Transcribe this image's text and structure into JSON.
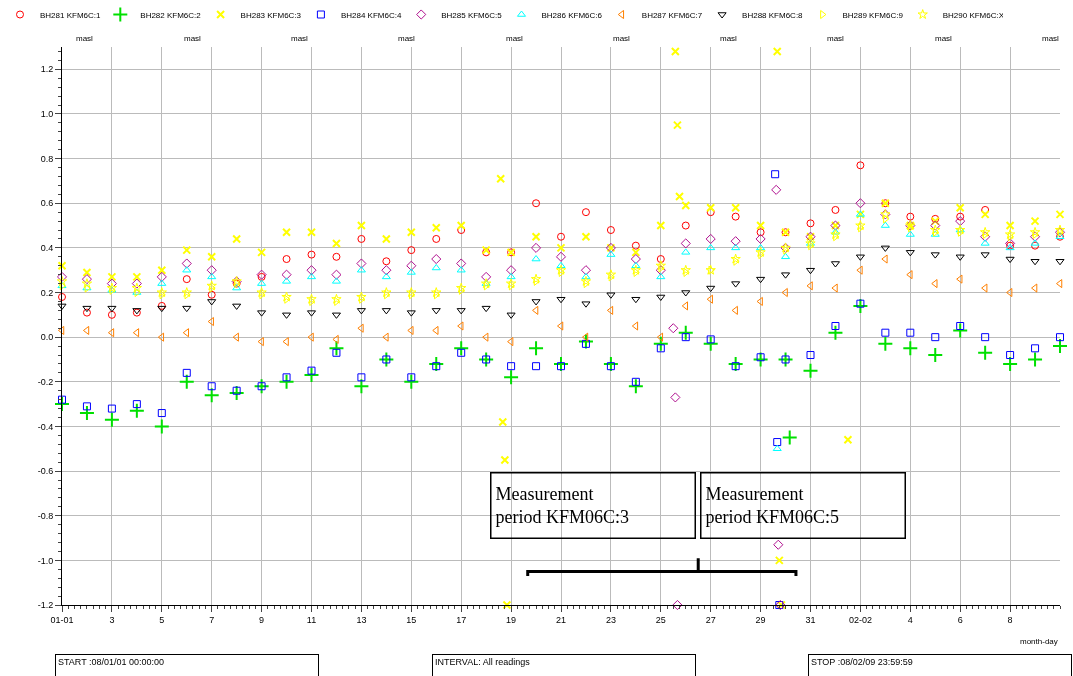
{
  "chart_data": {
    "type": "scatter",
    "x": [
      "--01-01",
      "--01-02",
      "--01-03",
      "--01-04",
      "--01-05",
      "--01-06",
      "--01-07",
      "--01-08",
      "--01-09",
      "--01-10",
      "--01-11",
      "--01-12",
      "--01-13",
      "--01-14",
      "--01-15",
      "--01-16",
      "--01-17",
      "--01-18",
      "--01-19",
      "--01-20",
      "--01-21",
      "--01-22",
      "--01-23",
      "--01-24",
      "--01-25",
      "--01-26",
      "--01-27",
      "--01-28",
      "--01-29",
      "--01-30",
      "--01-31",
      "--02-01",
      "--02-02",
      "--02-03",
      "--02-04",
      "--02-05",
      "--02-06",
      "--02-07",
      "--02-08",
      "--02-09",
      "--02-10"
    ],
    "xlabel": "month-day",
    "series": [
      {
        "name": "BH281 KFM6C:1",
        "color": "#ff0000",
        "marker": "circle",
        "values": [
          0.18,
          0.11,
          0.1,
          0.11,
          0.14,
          0.26,
          0.19,
          0.24,
          0.27,
          0.35,
          0.37,
          0.36,
          0.44,
          0.34,
          0.39,
          0.44,
          0.48,
          0.38,
          0.38,
          0.6,
          0.45,
          0.56,
          0.48,
          0.41,
          0.35,
          0.5,
          0.56,
          0.54,
          0.47,
          0.47,
          0.51,
          0.57,
          0.77,
          0.6,
          0.54,
          0.53,
          0.54,
          0.57,
          0.41,
          0.41,
          0.45
        ]
      },
      {
        "name": "BH282 KFM6C:2",
        "color": "#00e000",
        "marker": "cross",
        "x": [
          "--01-01",
          "--01-02",
          "--01-03",
          "--01-04",
          "--01-05",
          "--01-06",
          "--01-07",
          "--01-08",
          "--01-09",
          "--01-10",
          "--01-11",
          "--01-12",
          "--01-13",
          "--01-14",
          "--01-15",
          "--01-16",
          "--01-17",
          "--01-18",
          "--01-19",
          "--01-20",
          "--01-21",
          "--01-22",
          "--01-23",
          "--01-24",
          "--01-25",
          "--01-26",
          "--01-27",
          "--01-28",
          "--01-29",
          "--01-30",
          "--01-30T04:00",
          "--01-31",
          "--02-01",
          "--02-02",
          "--02-03",
          "--02-04",
          "--02-05",
          "--02-06",
          "--02-07",
          "--02-08",
          "--02-09",
          "--02-10"
        ],
        "values": [
          -0.3,
          -0.34,
          -0.37,
          -0.33,
          -0.4,
          -0.2,
          -0.26,
          -0.25,
          -0.22,
          -0.2,
          -0.17,
          -0.05,
          -0.22,
          -0.1,
          -0.2,
          -0.12,
          -0.05,
          -0.1,
          -0.18,
          -0.05,
          -0.12,
          -0.02,
          -0.12,
          -0.22,
          -0.03,
          0.02,
          -0.03,
          -0.12,
          -0.1,
          -0.1,
          -0.45,
          -0.15,
          0.02,
          0.14,
          -0.03,
          -0.05,
          -0.08,
          0.03,
          -0.07,
          -0.12,
          -0.1,
          -0.04
        ]
      },
      {
        "name": "BH283 KFM6C:3",
        "color": "#ffff00",
        "marker": "x",
        "x": [
          "--01-01",
          "--01-02",
          "--01-03",
          "--01-04",
          "--01-05",
          "--01-06",
          "--01-07",
          "--01-08",
          "--01-09",
          "--01-10",
          "--01-11",
          "--01-12",
          "--01-13",
          "--01-14",
          "--01-15",
          "--01-16",
          "--01-17",
          "--01-18",
          "--01-18T14:00",
          "--01-18T16:00",
          "--01-18T18:00",
          "--01-18T20:00",
          "--01-19",
          "--01-20",
          "--01-21",
          "--01-22",
          "--01-23",
          "--01-24",
          "--01-25",
          "--01-25T14:00",
          "--01-25T16:00",
          "--01-25T18:00",
          "--01-26",
          "--01-27",
          "--01-28",
          "--01-29",
          "--01-29T16:00",
          "--01-29T18:00",
          "--01-29T20:00",
          "--01-30",
          "--01-31",
          "--02-01",
          "--02-01T12:00",
          "--02-02",
          "--02-03",
          "--02-04",
          "--02-05",
          "--02-06",
          "--02-07",
          "--02-08",
          "--02-09",
          "--02-10"
        ],
        "values": [
          0.32,
          0.29,
          0.27,
          0.27,
          0.3,
          0.39,
          0.36,
          0.44,
          0.38,
          0.47,
          0.47,
          0.42,
          0.5,
          0.44,
          0.47,
          0.49,
          0.5,
          0.39,
          0.71,
          -0.38,
          -0.55,
          -1.2,
          0.38,
          0.45,
          0.4,
          0.45,
          0.4,
          0.38,
          0.5,
          1.28,
          0.95,
          0.63,
          0.59,
          0.58,
          0.58,
          0.5,
          1.28,
          -1.0,
          -1.2,
          0.47,
          0.45,
          0.5,
          -0.46,
          0.55,
          0.6,
          0.5,
          0.52,
          0.58,
          0.55,
          0.5,
          0.52,
          0.55
        ]
      },
      {
        "name": "BH284 KFM6C:4",
        "color": "#0000ff",
        "marker": "square",
        "x": [
          "--01-01",
          "--01-02",
          "--01-03",
          "--01-04",
          "--01-05",
          "--01-06",
          "--01-07",
          "--01-08",
          "--01-09",
          "--01-10",
          "--01-11",
          "--01-12",
          "--01-13",
          "--01-14",
          "--01-15",
          "--01-16",
          "--01-17",
          "--01-18",
          "--01-19",
          "--01-20",
          "--01-21",
          "--01-22",
          "--01-23",
          "--01-24",
          "--01-25",
          "--01-26",
          "--01-27",
          "--01-28",
          "--01-29",
          "--01-29T14:00",
          "--01-29T16:00",
          "--01-29T18:00",
          "--01-30",
          "--01-31",
          "--02-01",
          "--02-02",
          "--02-03",
          "--02-04",
          "--02-05",
          "--02-06",
          "--02-07",
          "--02-08",
          "--02-09",
          "--02-10"
        ],
        "values": [
          -0.28,
          -0.31,
          -0.32,
          -0.3,
          -0.34,
          -0.16,
          -0.22,
          -0.24,
          -0.22,
          -0.18,
          -0.15,
          -0.07,
          -0.18,
          -0.1,
          -0.18,
          -0.13,
          -0.07,
          -0.1,
          -0.13,
          -0.13,
          -0.13,
          -0.03,
          -0.13,
          -0.2,
          -0.05,
          0.0,
          -0.01,
          -0.13,
          -0.09,
          0.73,
          -0.47,
          -1.2,
          -0.1,
          -0.08,
          0.05,
          0.15,
          0.02,
          0.02,
          0.0,
          0.05,
          0.0,
          -0.08,
          -0.05,
          0.0
        ]
      },
      {
        "name": "BH285 KFM6C:5",
        "color": "#b0108f",
        "marker": "diamond",
        "x": [
          "--01-01",
          "--01-02",
          "--01-03",
          "--01-04",
          "--01-05",
          "--01-06",
          "--01-07",
          "--01-08",
          "--01-09",
          "--01-10",
          "--01-11",
          "--01-12",
          "--01-13",
          "--01-14",
          "--01-15",
          "--01-16",
          "--01-17",
          "--01-18",
          "--01-19",
          "--01-20",
          "--01-21",
          "--01-22",
          "--01-23",
          "--01-24",
          "--01-25",
          "--01-25T12:00",
          "--01-25T14:00",
          "--01-25T16:00",
          "--01-26",
          "--01-27",
          "--01-28",
          "--01-29",
          "--01-29T15:00",
          "--01-29T17:00",
          "--01-29T19:00",
          "--01-30",
          "--01-31",
          "--02-01",
          "--02-02",
          "--02-03",
          "--02-04",
          "--02-05",
          "--02-06",
          "--02-07",
          "--02-08",
          "--02-09",
          "--02-10"
        ],
        "values": [
          0.27,
          0.26,
          0.24,
          0.24,
          0.27,
          0.33,
          0.3,
          0.25,
          0.28,
          0.28,
          0.3,
          0.28,
          0.33,
          0.3,
          0.32,
          0.35,
          0.33,
          0.27,
          0.3,
          0.4,
          0.36,
          0.3,
          0.4,
          0.35,
          0.3,
          0.04,
          -0.27,
          -1.2,
          0.42,
          0.44,
          0.43,
          0.44,
          0.66,
          -0.93,
          -1.2,
          0.4,
          0.45,
          0.5,
          0.6,
          0.55,
          0.5,
          0.5,
          0.52,
          0.45,
          0.42,
          0.45,
          0.47
        ]
      },
      {
        "name": "BH286 KFM6C:6",
        "color": "#00ffff",
        "marker": "triangle-up",
        "x": [
          "--01-01",
          "--01-02",
          "--01-03",
          "--01-04",
          "--01-05",
          "--01-06",
          "--01-07",
          "--01-08",
          "--01-09",
          "--01-10",
          "--01-11",
          "--01-12",
          "--01-13",
          "--01-14",
          "--01-15",
          "--01-16",
          "--01-17",
          "--01-18",
          "--01-19",
          "--01-20",
          "--01-21",
          "--01-22",
          "--01-23",
          "--01-24",
          "--01-25",
          "--01-26",
          "--01-27",
          "--01-28",
          "--01-29",
          "--01-29T16:00",
          "--01-30",
          "--01-31",
          "--02-01",
          "--02-02",
          "--02-03",
          "--02-04",
          "--02-05",
          "--02-06",
          "--02-07",
          "--02-08",
          "--02-09",
          "--02-10"
        ],
        "values": [
          0.23,
          0.22,
          0.21,
          0.2,
          0.24,
          0.3,
          0.27,
          0.22,
          0.24,
          0.25,
          0.27,
          0.25,
          0.3,
          0.27,
          0.29,
          0.31,
          0.3,
          0.24,
          0.27,
          0.35,
          0.32,
          0.27,
          0.37,
          0.32,
          0.27,
          0.38,
          0.4,
          0.4,
          0.4,
          -0.5,
          0.36,
          0.42,
          0.47,
          0.55,
          0.5,
          0.46,
          0.46,
          0.48,
          0.42,
          0.4,
          0.42,
          0.45
        ]
      },
      {
        "name": "BH287 KFM6C:7",
        "color": "#ff8000",
        "marker": "triangle-left",
        "values": [
          0.03,
          0.03,
          0.02,
          0.02,
          0.0,
          0.02,
          0.07,
          0.0,
          -0.02,
          -0.02,
          0.0,
          -0.01,
          0.04,
          0.0,
          0.03,
          0.03,
          0.05,
          0.0,
          -0.02,
          0.12,
          0.05,
          0.0,
          0.12,
          0.05,
          0.0,
          0.14,
          0.17,
          0.12,
          0.16,
          0.2,
          0.23,
          0.22,
          0.3,
          0.35,
          0.28,
          0.24,
          0.26,
          0.22,
          0.2,
          0.22,
          0.24
        ]
      },
      {
        "name": "BH288 KFM6C:8",
        "color": "#000000",
        "marker": "triangle-down",
        "values": [
          0.14,
          0.13,
          0.13,
          0.12,
          0.13,
          0.13,
          0.16,
          0.14,
          0.11,
          0.1,
          0.11,
          0.1,
          0.12,
          0.12,
          0.11,
          0.12,
          0.12,
          0.13,
          0.1,
          0.16,
          0.17,
          0.15,
          0.19,
          0.17,
          0.18,
          0.2,
          0.22,
          0.24,
          0.26,
          0.28,
          0.3,
          0.33,
          0.36,
          0.4,
          0.38,
          0.37,
          0.36,
          0.37,
          0.35,
          0.34,
          0.34
        ]
      },
      {
        "name": "BH289 KFM6C:9",
        "color": "#ffff00",
        "marker": "triangle-right",
        "values": [
          0.23,
          0.22,
          0.21,
          0.2,
          0.19,
          0.19,
          0.22,
          0.24,
          0.19,
          0.17,
          0.16,
          0.16,
          0.17,
          0.19,
          0.19,
          0.19,
          0.21,
          0.23,
          0.23,
          0.25,
          0.29,
          0.24,
          0.27,
          0.29,
          0.31,
          0.29,
          0.3,
          0.34,
          0.37,
          0.39,
          0.41,
          0.45,
          0.49,
          0.53,
          0.49,
          0.47,
          0.47,
          0.46,
          0.45,
          0.46,
          0.47
        ]
      },
      {
        "name": "BH290 KFM6C:X",
        "color": "#ffff00",
        "marker": "star",
        "values": [
          0.25,
          0.24,
          0.22,
          0.22,
          0.2,
          0.2,
          0.23,
          0.25,
          0.2,
          0.18,
          0.17,
          0.17,
          0.18,
          0.2,
          0.2,
          0.2,
          0.22,
          0.24,
          0.24,
          0.26,
          0.3,
          0.25,
          0.28,
          0.3,
          0.32,
          0.3,
          0.3,
          0.35,
          0.38,
          0.4,
          0.42,
          0.46,
          0.5,
          0.55,
          0.5,
          0.48,
          0.48,
          0.47,
          0.46,
          0.47,
          0.48
        ]
      },
      {
        "type": "line",
        "color": "#000000",
        "marker": "none",
        "x": [
          "--01-19T16:00",
          "--01-19T16:00",
          "--01-26T12:00",
          "--01-26T12:00",
          "--01-26T12:00",
          "--01-30T10:00",
          "--01-30T10:00"
        ],
        "values": [
          -1.07,
          -1.05,
          -1.05,
          -0.99,
          -1.05,
          -1.05,
          -1.07
        ]
      }
    ],
    "xlim": [
      "--01-01",
      "--02-10"
    ],
    "xticks": [
      {
        "value": "--01-01",
        "label": "01-01"
      },
      {
        "value": "--01-03",
        "label": "3"
      },
      {
        "value": "--01-05",
        "label": "5"
      },
      {
        "value": "--01-07",
        "label": "7"
      },
      {
        "value": "--01-09",
        "label": "9"
      },
      {
        "value": "--01-11",
        "label": "11"
      },
      {
        "value": "--01-13",
        "label": "13"
      },
      {
        "value": "--01-15",
        "label": "15"
      },
      {
        "value": "--01-17",
        "label": "17"
      },
      {
        "value": "--01-19",
        "label": "19"
      },
      {
        "value": "--01-21",
        "label": "21"
      },
      {
        "value": "--01-23",
        "label": "23"
      },
      {
        "value": "--01-25",
        "label": "25"
      },
      {
        "value": "--01-27",
        "label": "27"
      },
      {
        "value": "--01-29",
        "label": "29"
      },
      {
        "value": "--01-31",
        "label": "31"
      },
      {
        "value": "--02-02",
        "label": "02-02"
      },
      {
        "value": "--02-04",
        "label": "4"
      },
      {
        "value": "--02-06",
        "label": "6"
      },
      {
        "value": "--02-08",
        "label": "8"
      }
    ],
    "ylim": [
      -1.2,
      1.3
    ],
    "yticks": [
      -1.2,
      {
        "value": -1.0,
        "label": "-1.0"
      },
      -0.8,
      -0.6,
      -0.4,
      -0.2,
      {
        "value": 0,
        "label": "0.0"
      },
      0.2,
      0.4,
      0.6,
      0.8,
      {
        "value": 1.0,
        "label": "1.0"
      },
      1.2
    ],
    "grid": true,
    "legend": "top",
    "annotations": [
      "masl",
      "masl",
      "masl",
      "masl",
      "masl",
      "masl",
      "masl",
      "masl",
      "masl",
      "masl",
      "START :08/01/01 00:00:00",
      "INTERVAL: All readings",
      "STOP :08/02/09 23:59:59",
      "Measurement\nperiod KFM06C:3",
      "Measurement\nperiod KFM06C:5"
    ]
  }
}
